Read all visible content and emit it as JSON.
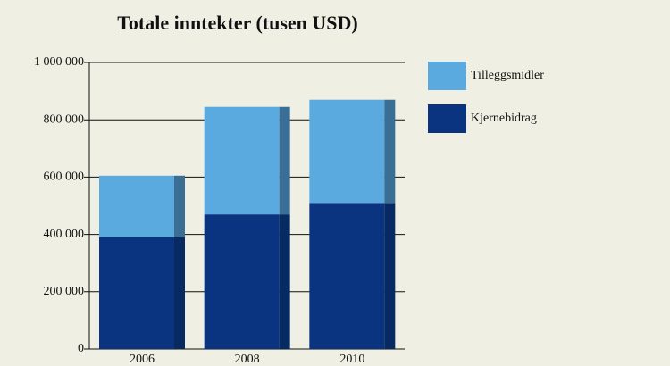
{
  "chart_data": {
    "type": "stacked_bar",
    "title": "Totale inntekter (tusen USD)",
    "categories": [
      "2006",
      "2008",
      "2010"
    ],
    "series": [
      {
        "name": "Kjernebidrag",
        "color": "#0b3480",
        "side_color": "#082a63",
        "values": [
          390000,
          470000,
          510000
        ]
      },
      {
        "name": "Tilleggsmidler",
        "color": "#5aaadf",
        "side_color": "#3b6e95",
        "values": [
          215000,
          375000,
          360000
        ]
      }
    ],
    "ylim": [
      0,
      1000000
    ],
    "yticks": [
      0,
      {
        "value": 200000,
        "label": "200 000"
      },
      {
        "value": 400000,
        "label": "400 000"
      },
      {
        "value": 600000,
        "label": "600 000"
      },
      {
        "value": 800000,
        "label": "800 000"
      },
      {
        "value": 1000000,
        "label": "1 000 000"
      }
    ],
    "grid": true
  }
}
